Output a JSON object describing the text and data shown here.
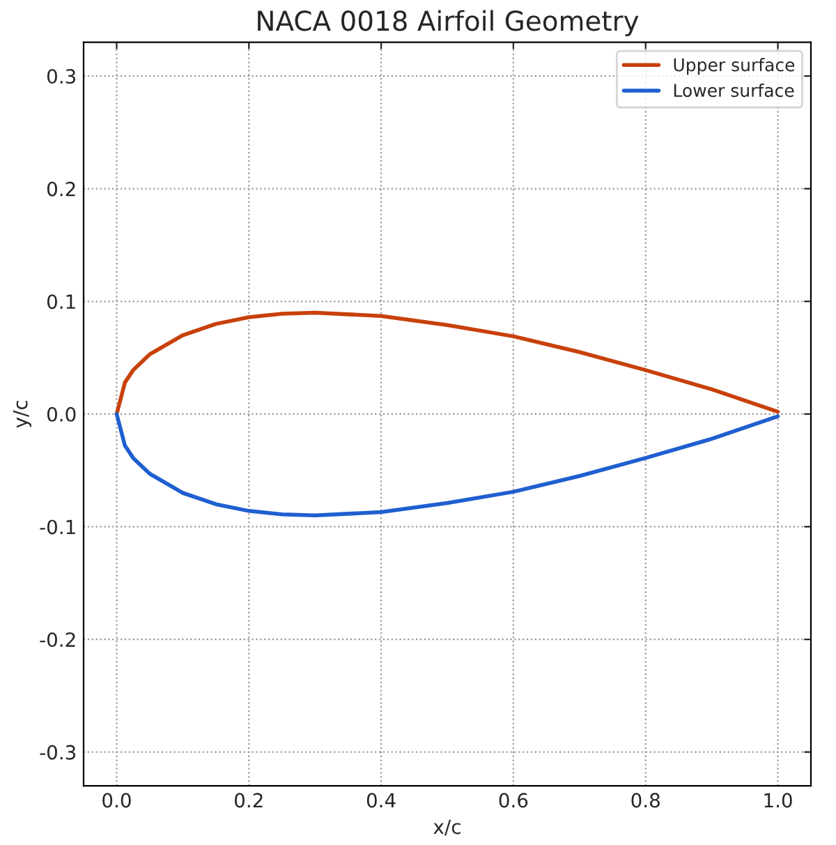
{
  "chart_data": {
    "type": "line",
    "title": "NACA 0018 Airfoil Geometry",
    "xlabel": "x/c",
    "ylabel": "y/c",
    "series": [
      {
        "name": "Upper surface",
        "color": "#c8400a",
        "x": [
          0,
          0.0125,
          0.025,
          0.05,
          0.1,
          0.15,
          0.2,
          0.25,
          0.3,
          0.4,
          0.5,
          0.6,
          0.7,
          0.8,
          0.9,
          1.0
        ],
        "values": [
          0,
          0.028,
          0.039,
          0.053,
          0.07,
          0.08,
          0.086,
          0.089,
          0.09,
          0.087,
          0.079,
          0.069,
          0.055,
          0.039,
          0.022,
          0.002
        ]
      },
      {
        "name": "Lower surface",
        "color": "#1f5fd0",
        "x": [
          0,
          0.0125,
          0.025,
          0.05,
          0.1,
          0.15,
          0.2,
          0.25,
          0.3,
          0.4,
          0.5,
          0.6,
          0.7,
          0.8,
          0.9,
          1.0
        ],
        "values": [
          0,
          -0.028,
          -0.039,
          -0.053,
          -0.07,
          -0.08,
          -0.086,
          -0.089,
          -0.09,
          -0.087,
          -0.079,
          -0.069,
          -0.055,
          -0.039,
          -0.022,
          -0.002
        ]
      }
    ],
    "xlim": [
      -0.05,
      1.05
    ],
    "ylim": [
      -0.33,
      0.33
    ],
    "xticks": [
      {
        "value": 0,
        "label": "0.0"
      },
      0.2,
      0.4,
      0.6,
      0.8,
      {
        "value": 1,
        "label": "1.0"
      }
    ],
    "yticks": [
      -0.3,
      -0.2,
      -0.1,
      {
        "value": 0,
        "label": "0.0"
      },
      0.1,
      0.2,
      0.3
    ],
    "grid": true,
    "legend": "top right",
    "line_style": "solid",
    "marker": "none"
  }
}
